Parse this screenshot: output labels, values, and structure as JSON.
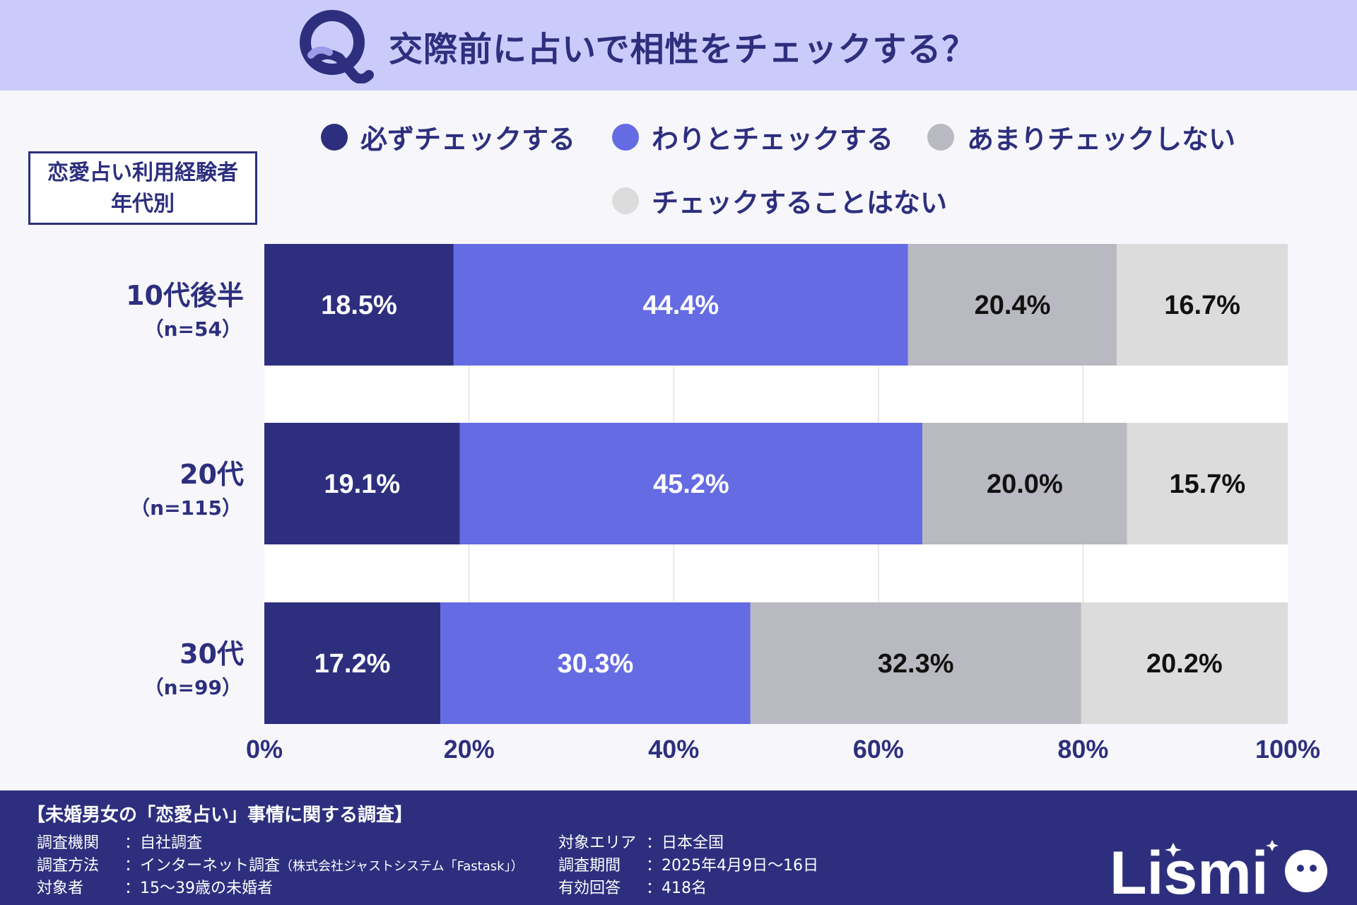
{
  "header": {
    "q_mark": "Q",
    "title": "交際前に占いで相性をチェックする？"
  },
  "badge": {
    "line1": "恋愛占い利用経験者",
    "line2": "年代別"
  },
  "colors": {
    "c1": "#2d2f7e",
    "c2": "#646be3",
    "c3": "#b9b9c1",
    "c4": "#dcdcdc",
    "header_bg": "#cbcbfb",
    "footer_bg": "#2d2f7e"
  },
  "chart_data": {
    "type": "bar",
    "orientation": "horizontal",
    "stacked": true,
    "title": "交際前に占いで相性をチェックする？",
    "categories": [
      "10代後半",
      "20代",
      "30代"
    ],
    "sample_sizes": [
      "（n=54）",
      "（n=115）",
      "（n=99）"
    ],
    "series": [
      {
        "name": "必ずチェックする",
        "color": "#2d2f7e",
        "values": [
          18.5,
          19.1,
          17.2
        ],
        "labels": [
          "18.5%",
          "19.1%",
          "17.2%"
        ]
      },
      {
        "name": "わりとチェックする",
        "color": "#646be3",
        "values": [
          44.4,
          45.2,
          30.3
        ],
        "labels": [
          "44.4%",
          "45.2%",
          "30.3%"
        ]
      },
      {
        "name": "あまりチェックしない",
        "color": "#b9b9c1",
        "values": [
          20.4,
          20.0,
          32.3
        ],
        "labels": [
          "20.4%",
          "20.0%",
          "32.3%"
        ]
      },
      {
        "name": "チェックすることはない",
        "color": "#dcdcdc",
        "values": [
          16.7,
          15.7,
          20.2
        ],
        "labels": [
          "16.7%",
          "15.7%",
          "20.2%"
        ]
      }
    ],
    "xlim": [
      0,
      100
    ],
    "xticks": [
      "0%",
      "20%",
      "40%",
      "60%",
      "80%",
      "100%"
    ],
    "legend": "top"
  },
  "footer": {
    "title": "【未婚男女の「恋愛占い」事情に関する調査】",
    "left": [
      {
        "key": "調査機関",
        "value": "：自社調査",
        "note": ""
      },
      {
        "key": "調査方法",
        "value": "：インターネット調査",
        "note": "（株式会社ジャストシステム「Fastask」）"
      },
      {
        "key": "対象者",
        "value": "：15～39歳の未婚者",
        "note": ""
      }
    ],
    "right": [
      {
        "key": "対象エリア",
        "value": "：日本全国"
      },
      {
        "key": "調査期間",
        "value": "：2025年4月9日～16日"
      },
      {
        "key": "有効回答",
        "value": "：418名"
      }
    ],
    "logo": "Lismi"
  }
}
